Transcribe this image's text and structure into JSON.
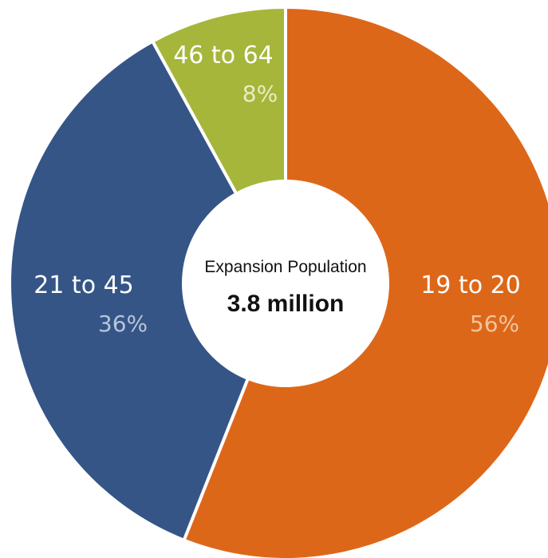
{
  "chart_data": {
    "type": "pie",
    "center": {
      "title": "Expansion Population",
      "value": "3.8 million"
    },
    "slices": [
      {
        "label": "19 to 20",
        "percent_label": "56%",
        "value": 56,
        "color": "#DD6719",
        "pct_color": "#F3C49C"
      },
      {
        "label": "21 to 45",
        "percent_label": "36%",
        "value": 36,
        "color": "#355587",
        "pct_color": "#B8C5DA"
      },
      {
        "label": "46 to 64",
        "percent_label": "8%",
        "value": 8,
        "color": "#A6B63B",
        "pct_color": "#E8EDC4"
      }
    ]
  }
}
